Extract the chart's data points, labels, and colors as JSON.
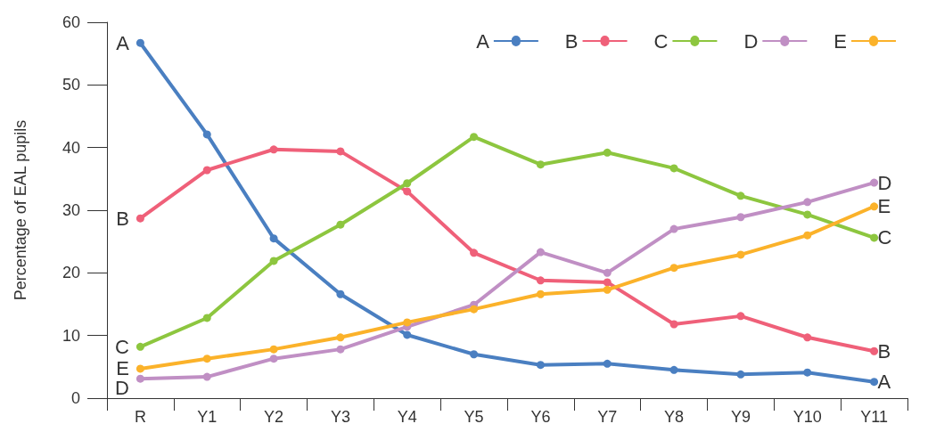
{
  "chart_data": {
    "type": "line",
    "ylabel": "Percentage of EAL pupils",
    "categories": [
      "R",
      "Y1",
      "Y2",
      "Y3",
      "Y4",
      "Y5",
      "Y6",
      "Y7",
      "Y8",
      "Y9",
      "Y10",
      "Y11"
    ],
    "series": [
      {
        "name": "A",
        "color": "#4a7fc1",
        "values": [
          56.7,
          42.1,
          25.5,
          16.6,
          10.1,
          7.0,
          5.3,
          5.5,
          4.5,
          3.8,
          4.1,
          2.6
        ]
      },
      {
        "name": "B",
        "color": "#ef6079",
        "values": [
          28.7,
          36.4,
          39.7,
          39.4,
          33.0,
          23.2,
          18.8,
          18.5,
          11.8,
          13.1,
          9.7,
          7.5
        ]
      },
      {
        "name": "C",
        "color": "#8dc63f",
        "values": [
          8.2,
          12.8,
          21.9,
          27.7,
          34.3,
          41.7,
          37.3,
          39.2,
          36.7,
          32.3,
          29.3,
          25.6
        ]
      },
      {
        "name": "D",
        "color": "#c08fc4",
        "values": [
          3.1,
          3.4,
          6.3,
          7.8,
          11.4,
          14.9,
          23.3,
          20.0,
          27.0,
          28.9,
          31.3,
          34.4
        ]
      },
      {
        "name": "E",
        "color": "#fbb22a",
        "values": [
          4.7,
          6.3,
          7.8,
          9.7,
          12.1,
          14.2,
          16.6,
          17.3,
          20.8,
          22.9,
          26.0,
          30.6
        ]
      }
    ],
    "ylim": [
      0,
      60
    ],
    "yticks": [
      0,
      10,
      20,
      30,
      40,
      50,
      60
    ],
    "grid": false,
    "legend": "top right",
    "marker": "circle",
    "line_style": "solid"
  }
}
